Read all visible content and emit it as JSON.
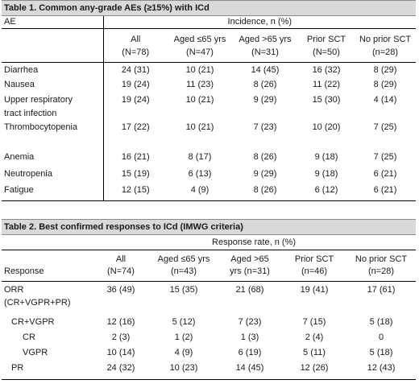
{
  "table1": {
    "title": "Table 1. Common any-grade AEs (≥15%) with ICd",
    "ae_header": "AE",
    "incidence_header": "Incidence, n (%)",
    "columns": [
      {
        "line1": "All",
        "line2": "(N=78)"
      },
      {
        "line1": "Aged ≤65 yrs",
        "line2": "(N=47)"
      },
      {
        "line1": "Aged >65 yrs",
        "line2": "(N=31)"
      },
      {
        "line1": "Prior SCT",
        "line2": "(N=50)"
      },
      {
        "line1": "No prior SCT",
        "line2": "(n=28)"
      }
    ],
    "rows": [
      {
        "label": "Diarrhea",
        "values": [
          "24 (31)",
          "10 (21)",
          "14 (45)",
          "16 (32)",
          "8 (29)"
        ]
      },
      {
        "label": "Nausea",
        "values": [
          "19 (24)",
          "11 (23)",
          "8 (26)",
          "11 (22)",
          "8 (29)"
        ]
      },
      {
        "label": "Upper respiratory",
        "label2": "tract infection",
        "values": [
          "19 (24)",
          "10 (21)",
          "9 (29)",
          "15 (30)",
          "4 (14)"
        ]
      },
      {
        "label": "Thrombocytopenia",
        "values": [
          "17 (22)",
          "10 (21)",
          "7 (23)",
          "10 (20)",
          "7 (25)"
        ]
      },
      {
        "label": "Anemia",
        "values": [
          "16 (21)",
          "8 (17)",
          "8 (26)",
          "9 (18)",
          "7 (25)"
        ]
      },
      {
        "label": "Neutropenia",
        "values": [
          "15 (19)",
          "6 (13)",
          "9 (29)",
          "9 (18)",
          "6 (21)"
        ]
      },
      {
        "label": "Fatigue",
        "values": [
          "12 (15)",
          "4 (9)",
          "8 (26)",
          "6 (12)",
          "6 (21)"
        ]
      }
    ]
  },
  "table2": {
    "title": "Table 2. Best confirmed responses to ICd (IMWG criteria)",
    "rate_header": "Response rate, n (%)",
    "response_header": "Response",
    "columns": [
      {
        "line1": "All",
        "line2": "(N=74)"
      },
      {
        "line1": "Aged ≤65 yrs",
        "line2": "(n=43)"
      },
      {
        "line1": "Aged >65",
        "line2": "yrs (n=31)"
      },
      {
        "line1": "Prior SCT",
        "line2": "(n=46)"
      },
      {
        "line1": "No prior SCT",
        "line2": "(n=28)"
      }
    ],
    "rows": [
      {
        "label": "ORR",
        "label2": "(CR+VGPR+PR)",
        "values": [
          "36 (49)",
          "15 (35)",
          "21 (68)",
          "19 (41)",
          "17 (61)"
        ]
      },
      {
        "label": "CR+VGPR",
        "values": [
          "12 (16)",
          "5 (12)",
          "7 (23)",
          "7 (15)",
          "5 (18)"
        ]
      },
      {
        "label": "CR",
        "values": [
          "2 (3)",
          "1 (2)",
          "1 (3)",
          "2 (4)",
          "0"
        ]
      },
      {
        "label": "VGPR",
        "values": [
          "10 (14)",
          "4 (9)",
          "6 (19)",
          "5 (11)",
          "5 (18)"
        ]
      },
      {
        "label": "PR",
        "values": [
          "24 (32)",
          "10 (23)",
          "14 (45)",
          "12 (26)",
          "12 (43)"
        ]
      }
    ]
  }
}
